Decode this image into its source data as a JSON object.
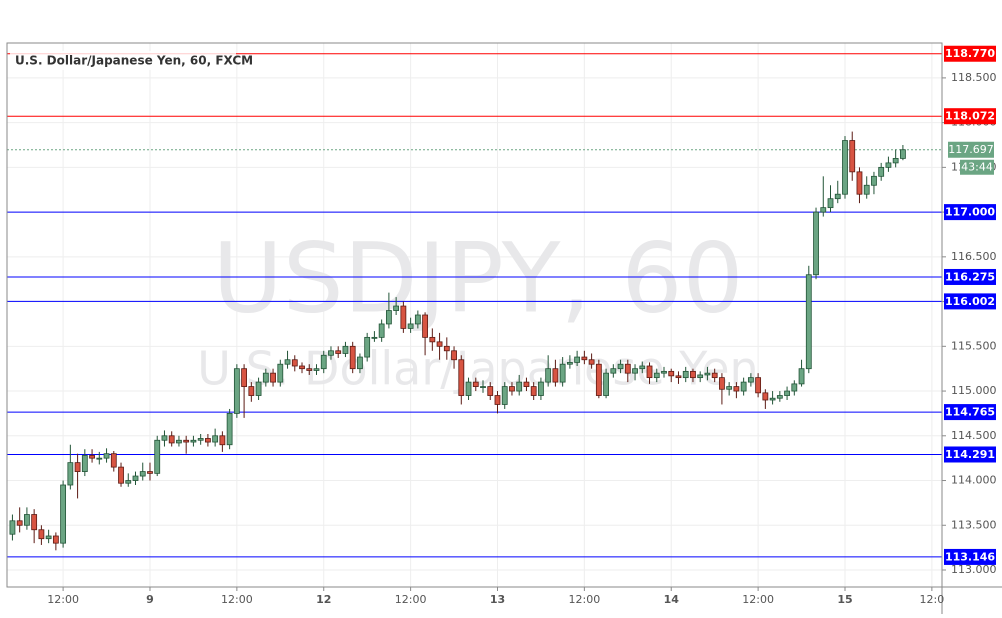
{
  "chart_data": {
    "type": "candlestick",
    "title": "U.S. Dollar/Japanese Yen, 60, FXCM",
    "watermark": "USDJPY, 60",
    "watermark_subtitle": "U.S. Dollar/Japanese Yen",
    "x": [
      -19,
      -18,
      -17,
      -16,
      -15,
      -14,
      -13,
      -12,
      -11,
      -10,
      -9,
      -8,
      -7,
      -6,
      -5,
      -4,
      -3,
      -2,
      -1,
      0,
      1,
      2,
      3,
      4,
      5,
      6,
      7,
      8,
      9,
      10,
      11,
      12,
      13,
      14,
      15,
      16,
      17,
      18,
      19,
      20,
      21,
      22,
      23,
      24,
      25,
      26,
      27,
      28,
      29,
      30,
      31,
      32,
      33,
      34,
      35,
      36,
      37,
      38,
      39,
      40,
      41,
      42,
      43,
      44,
      45,
      46,
      47,
      48,
      49,
      50,
      51,
      52,
      53,
      54,
      55,
      56,
      57,
      58,
      59,
      60,
      61,
      62,
      63,
      64,
      65,
      66,
      67,
      68,
      69,
      70,
      71,
      72,
      73,
      74,
      75,
      76,
      77,
      78,
      79,
      80,
      81,
      82,
      83,
      84,
      85,
      86,
      87,
      88,
      89,
      90,
      91,
      92,
      93,
      94,
      95,
      96,
      97,
      98,
      99,
      100,
      101,
      102,
      103,
      104
    ],
    "open": [
      113.4,
      113.55,
      113.5,
      113.62,
      113.45,
      113.35,
      113.38,
      113.3,
      113.95,
      114.2,
      114.1,
      114.28,
      114.25,
      114.25,
      114.3,
      114.15,
      113.97,
      114.0,
      114.05,
      114.1,
      114.08,
      114.45,
      114.5,
      114.42,
      114.45,
      114.43,
      114.45,
      114.47,
      114.43,
      114.5,
      114.4,
      114.75,
      115.25,
      115.05,
      114.95,
      115.1,
      115.2,
      115.1,
      115.3,
      115.35,
      115.28,
      115.25,
      115.23,
      115.25,
      115.4,
      115.45,
      115.42,
      115.5,
      115.25,
      115.38,
      115.6,
      115.6,
      115.75,
      115.9,
      115.95,
      115.7,
      115.75,
      115.85,
      115.6,
      115.55,
      115.5,
      115.45,
      115.35,
      114.95,
      115.1,
      115.05,
      115.05,
      114.95,
      114.85,
      115.05,
      115.0,
      115.1,
      115.05,
      114.95,
      115.1,
      115.25,
      115.1,
      115.3,
      115.32,
      115.38,
      115.35,
      115.3,
      114.95,
      115.2,
      115.25,
      115.3,
      115.2,
      115.25,
      115.28,
      115.15,
      115.2,
      115.22,
      115.17,
      115.15,
      115.22,
      115.15,
      115.18,
      115.2,
      115.15,
      115.02,
      115.05,
      115.0,
      115.1,
      115.15,
      114.98,
      114.9,
      114.92,
      114.95,
      115.0,
      115.08,
      115.25,
      116.3,
      117.0,
      117.05,
      117.15,
      117.2,
      117.8,
      117.45,
      117.2,
      117.3,
      117.4,
      117.5,
      117.55,
      117.6
    ],
    "high": [
      113.62,
      113.7,
      113.7,
      113.68,
      113.5,
      113.45,
      113.42,
      114.0,
      114.4,
      114.3,
      114.35,
      114.35,
      114.32,
      114.36,
      114.33,
      114.2,
      114.08,
      114.1,
      114.2,
      114.2,
      114.5,
      114.56,
      114.55,
      114.5,
      114.5,
      114.5,
      114.52,
      114.52,
      114.58,
      114.55,
      114.8,
      115.3,
      115.3,
      115.1,
      115.15,
      115.25,
      115.25,
      115.35,
      115.45,
      115.4,
      115.32,
      115.3,
      115.3,
      115.45,
      115.5,
      115.5,
      115.55,
      115.55,
      115.42,
      115.65,
      115.67,
      115.8,
      116.1,
      116.05,
      116.0,
      115.82,
      115.9,
      115.88,
      115.7,
      115.65,
      115.6,
      115.5,
      115.4,
      115.15,
      115.15,
      115.12,
      115.1,
      115.0,
      115.1,
      115.1,
      115.18,
      115.15,
      115.1,
      115.15,
      115.4,
      115.35,
      115.38,
      115.4,
      115.45,
      115.45,
      115.42,
      115.35,
      115.25,
      115.3,
      115.35,
      115.35,
      115.3,
      115.33,
      115.32,
      115.25,
      115.27,
      115.25,
      115.22,
      115.27,
      115.25,
      115.22,
      115.27,
      115.25,
      115.2,
      115.1,
      115.1,
      115.15,
      115.2,
      115.2,
      115.02,
      115.0,
      115.0,
      115.05,
      115.12,
      115.35,
      116.4,
      117.05,
      117.4,
      117.3,
      117.35,
      117.85,
      117.9,
      117.5,
      117.4,
      117.45,
      117.55,
      117.62,
      117.7,
      117.75
    ],
    "low": [
      113.33,
      113.42,
      113.45,
      113.3,
      113.28,
      113.3,
      113.22,
      113.25,
      113.9,
      113.8,
      114.05,
      114.2,
      114.18,
      114.2,
      114.1,
      113.93,
      113.93,
      113.95,
      114.0,
      114.0,
      114.05,
      114.38,
      114.38,
      114.38,
      114.3,
      114.38,
      114.4,
      114.38,
      114.38,
      114.32,
      114.35,
      114.7,
      114.7,
      114.88,
      114.9,
      115.05,
      115.05,
      115.05,
      115.25,
      115.22,
      115.2,
      115.18,
      115.18,
      115.2,
      115.35,
      115.37,
      115.38,
      115.2,
      115.2,
      115.33,
      115.55,
      115.55,
      115.7,
      115.85,
      115.65,
      115.65,
      115.7,
      115.4,
      115.45,
      115.35,
      115.35,
      115.25,
      114.85,
      114.9,
      115.0,
      114.98,
      114.9,
      114.75,
      114.8,
      114.95,
      114.95,
      115.0,
      114.9,
      114.9,
      115.05,
      115.05,
      115.05,
      115.25,
      115.28,
      115.3,
      115.25,
      114.92,
      114.92,
      115.15,
      115.2,
      115.1,
      115.12,
      115.2,
      115.08,
      115.1,
      115.15,
      115.1,
      115.08,
      115.1,
      115.1,
      115.1,
      115.12,
      115.1,
      114.85,
      114.95,
      114.92,
      114.95,
      115.05,
      114.93,
      114.8,
      114.85,
      114.88,
      114.9,
      114.95,
      115.05,
      115.2,
      116.25,
      116.95,
      117.0,
      117.1,
      117.15,
      117.35,
      117.1,
      117.15,
      117.2,
      117.35,
      117.45,
      117.5,
      117.58
    ],
    "close": [
      113.55,
      113.5,
      113.62,
      113.45,
      113.35,
      113.38,
      113.3,
      113.95,
      114.2,
      114.1,
      114.28,
      114.25,
      114.25,
      114.3,
      114.15,
      113.97,
      114.0,
      114.05,
      114.1,
      114.08,
      114.45,
      114.5,
      114.42,
      114.45,
      114.43,
      114.45,
      114.47,
      114.43,
      114.5,
      114.4,
      114.75,
      115.25,
      115.05,
      114.95,
      115.1,
      115.2,
      115.1,
      115.3,
      115.35,
      115.28,
      115.25,
      115.23,
      115.25,
      115.4,
      115.45,
      115.42,
      115.5,
      115.25,
      115.38,
      115.6,
      115.6,
      115.75,
      115.9,
      115.95,
      115.7,
      115.75,
      115.85,
      115.6,
      115.55,
      115.5,
      115.45,
      115.35,
      114.95,
      115.1,
      115.05,
      115.05,
      114.95,
      114.85,
      115.05,
      115.0,
      115.1,
      115.05,
      114.95,
      115.1,
      115.25,
      115.1,
      115.3,
      115.32,
      115.38,
      115.35,
      115.3,
      114.95,
      115.2,
      115.25,
      115.3,
      115.2,
      115.25,
      115.28,
      115.15,
      115.2,
      115.22,
      115.17,
      115.15,
      115.22,
      115.15,
      115.18,
      115.2,
      115.15,
      115.02,
      115.05,
      115.0,
      115.1,
      115.15,
      114.98,
      114.9,
      114.92,
      114.95,
      115.0,
      115.08,
      115.25,
      116.3,
      117.0,
      117.05,
      117.15,
      117.2,
      117.8,
      117.45,
      117.2,
      117.3,
      117.4,
      117.5,
      117.55,
      117.6,
      117.697
    ],
    "up_color": "#6ba583",
    "down_color": "#d75442",
    "xlim": [
      -19.75,
      109.4
    ],
    "xticks": [
      {
        "value": -12,
        "label": "12:00"
      },
      {
        "value": 0,
        "label": "9"
      },
      {
        "value": 12,
        "label": "12:00"
      },
      {
        "value": 24,
        "label": "12"
      },
      {
        "value": 36,
        "label": "12:00"
      },
      {
        "value": 48,
        "label": "13"
      },
      {
        "value": 60,
        "label": "12:00"
      },
      {
        "value": 72,
        "label": "14"
      },
      {
        "value": 84,
        "label": "12:00"
      },
      {
        "value": 96,
        "label": "15"
      },
      {
        "value": 108,
        "label": "12:0"
      }
    ],
    "ylim": [
      112.81,
      118.89
    ],
    "yticks": [
      {
        "value": 113,
        "label": "113.000"
      },
      {
        "value": 113.5,
        "label": "113.500"
      },
      {
        "value": 114,
        "label": "114.000"
      },
      {
        "value": 114.5,
        "label": "114.500"
      },
      {
        "value": 115,
        "label": "115.000"
      },
      {
        "value": 115.5,
        "label": "115.500"
      },
      {
        "value": 116,
        "label": "116.000"
      },
      {
        "value": 116.5,
        "label": "116.500"
      },
      {
        "value": 117,
        "label": "117.000"
      },
      {
        "value": 117.5,
        "label": "117.500"
      },
      {
        "value": 118,
        "label": "118.000"
      },
      {
        "value": 118.5,
        "label": "118.500"
      }
    ],
    "grid": true,
    "levels": [
      {
        "value": 118.77,
        "label": "118.770",
        "color": "#ff0000"
      },
      {
        "value": 118.072,
        "label": "118.072",
        "color": "#ff0000"
      },
      {
        "value": 117.0,
        "label": "117.000",
        "color": "#0000ff"
      },
      {
        "value": 116.275,
        "label": "116.275",
        "color": "#0000ff"
      },
      {
        "value": 116.002,
        "label": "116.002",
        "color": "#0000ff"
      },
      {
        "value": 114.765,
        "label": "114.765",
        "color": "#0000ff"
      },
      {
        "value": 114.291,
        "label": "114.291",
        "color": "#0000ff"
      },
      {
        "value": 113.146,
        "label": "113.146",
        "color": "#0000ff"
      }
    ],
    "last_price": {
      "value": 117.697,
      "label": "117.697",
      "color": "#6ba583"
    },
    "countdown": "43:44"
  }
}
